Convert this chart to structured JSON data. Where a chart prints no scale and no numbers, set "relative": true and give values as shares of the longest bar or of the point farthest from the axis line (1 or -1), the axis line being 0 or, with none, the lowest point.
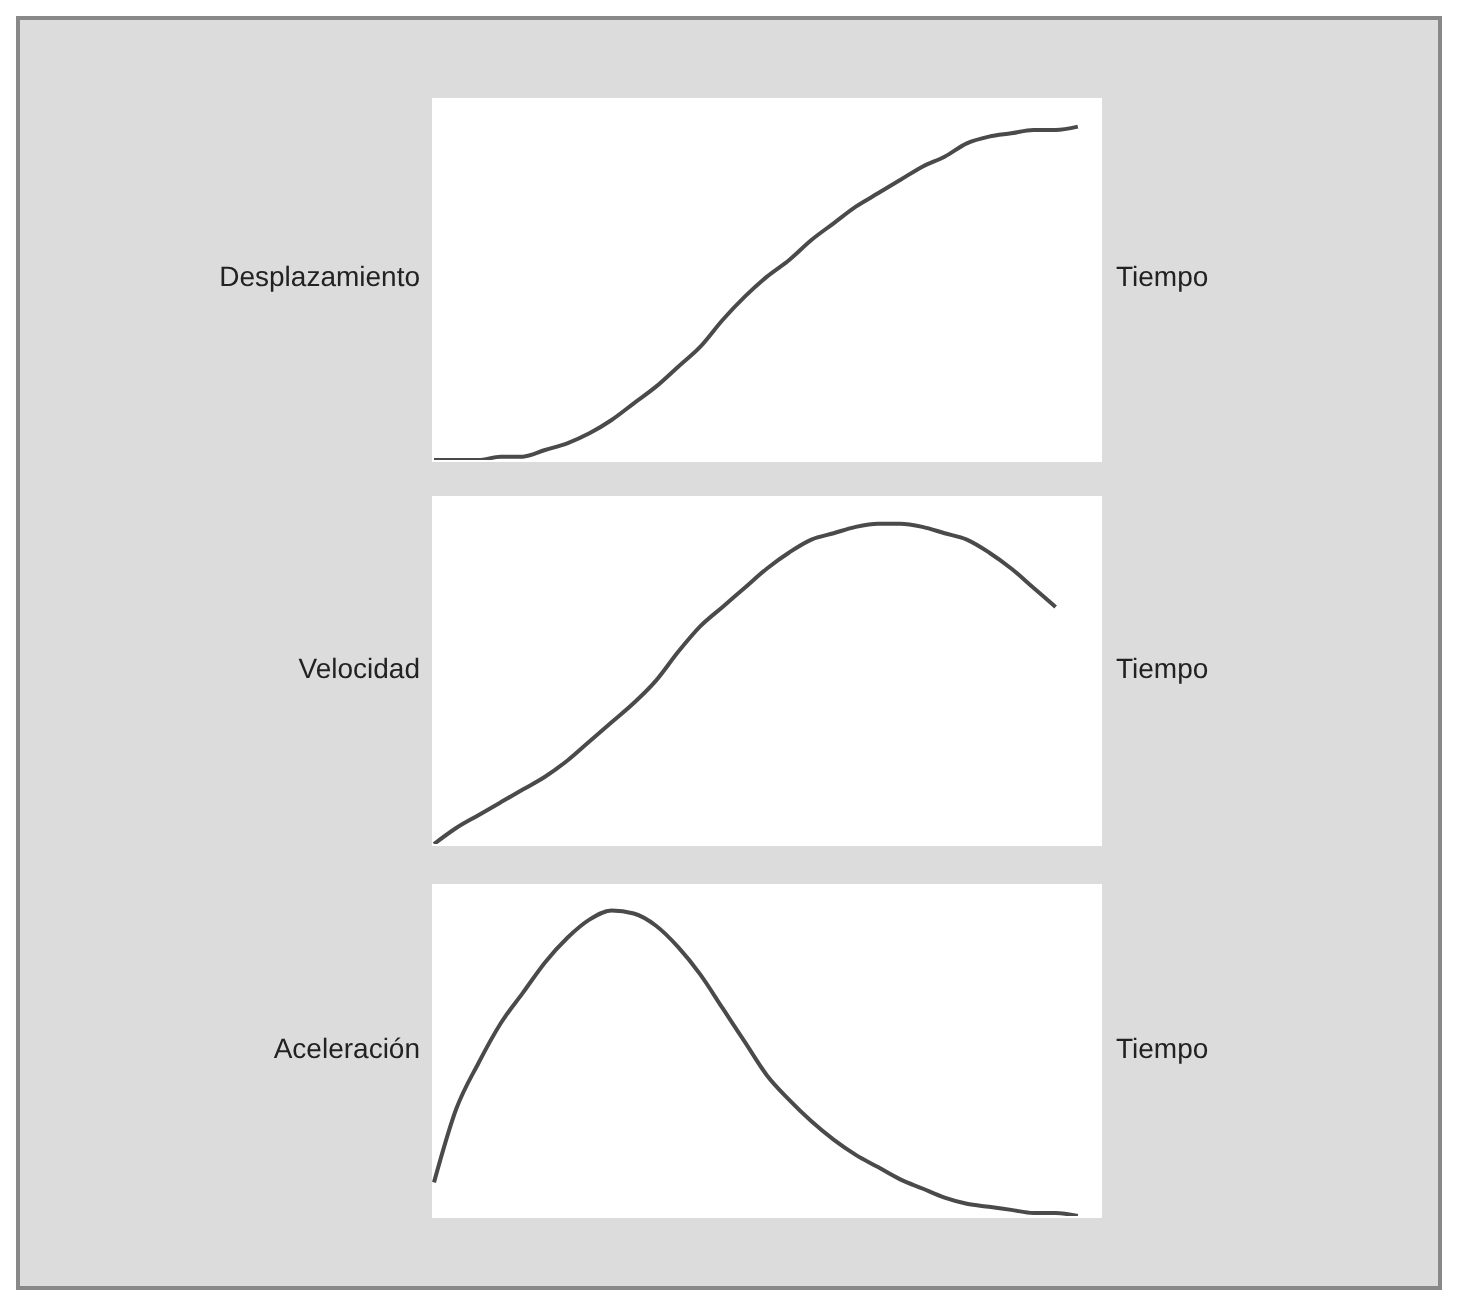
{
  "chart_data": [
    {
      "type": "line",
      "ylabel": "Desplazamiento",
      "xlabel": "Tiempo",
      "relative": true,
      "tick_labels": false,
      "color": "#4a4a4a",
      "categories": [
        null,
        null,
        null,
        null,
        null,
        null,
        null,
        null,
        null,
        null,
        null,
        null,
        null,
        null,
        null,
        null,
        null,
        null,
        null,
        null,
        null,
        null,
        null,
        null,
        null,
        null,
        null,
        null,
        null,
        null,
        null
      ],
      "values": [
        0,
        0,
        0,
        0.01,
        0.01,
        0.03,
        0.05,
        0.08,
        0.12,
        0.17,
        0.22,
        0.28,
        0.34,
        0.42,
        0.49,
        0.55,
        0.6,
        0.66,
        0.71,
        0.76,
        0.8,
        0.84,
        0.88,
        0.91,
        0.95,
        0.97,
        0.98,
        0.99,
        0.99,
        1.0,
        null
      ]
    },
    {
      "type": "line",
      "ylabel": "Velocidad",
      "xlabel": "Tiempo",
      "relative": true,
      "tick_labels": false,
      "color": "#4a4a4a",
      "categories": [
        null,
        null,
        null,
        null,
        null,
        null,
        null,
        null,
        null,
        null,
        null,
        null,
        null,
        null,
        null,
        null,
        null,
        null,
        null,
        null,
        null,
        null,
        null,
        null,
        null,
        null,
        null,
        null,
        null,
        null,
        null
      ],
      "values": [
        0,
        0.05,
        0.09,
        0.13,
        0.17,
        0.21,
        0.26,
        0.32,
        0.38,
        0.44,
        0.51,
        0.6,
        0.68,
        0.74,
        0.8,
        0.86,
        0.91,
        0.95,
        0.97,
        0.99,
        1.0,
        1.0,
        0.99,
        0.97,
        0.95,
        0.91,
        0.86,
        0.8,
        0.74,
        null,
        null
      ]
    },
    {
      "type": "line",
      "ylabel": "Aceleración",
      "xlabel": "Tiempo",
      "relative": true,
      "tick_labels": false,
      "color": "#4a4a4a",
      "categories": [
        null,
        null,
        null,
        null,
        null,
        null,
        null,
        null,
        null,
        null,
        null,
        null,
        null,
        null,
        null,
        null,
        null,
        null,
        null,
        null,
        null,
        null,
        null,
        null,
        null,
        null,
        null,
        null,
        null,
        null,
        null
      ],
      "values": [
        0.11,
        0.35,
        0.5,
        0.63,
        0.73,
        0.83,
        0.91,
        0.97,
        1.0,
        0.99,
        0.95,
        0.88,
        0.79,
        0.68,
        0.57,
        0.46,
        0.38,
        0.31,
        0.25,
        0.2,
        0.16,
        0.12,
        0.09,
        0.06,
        0.04,
        0.03,
        0.02,
        0.01,
        0.01,
        0,
        null
      ]
    }
  ]
}
